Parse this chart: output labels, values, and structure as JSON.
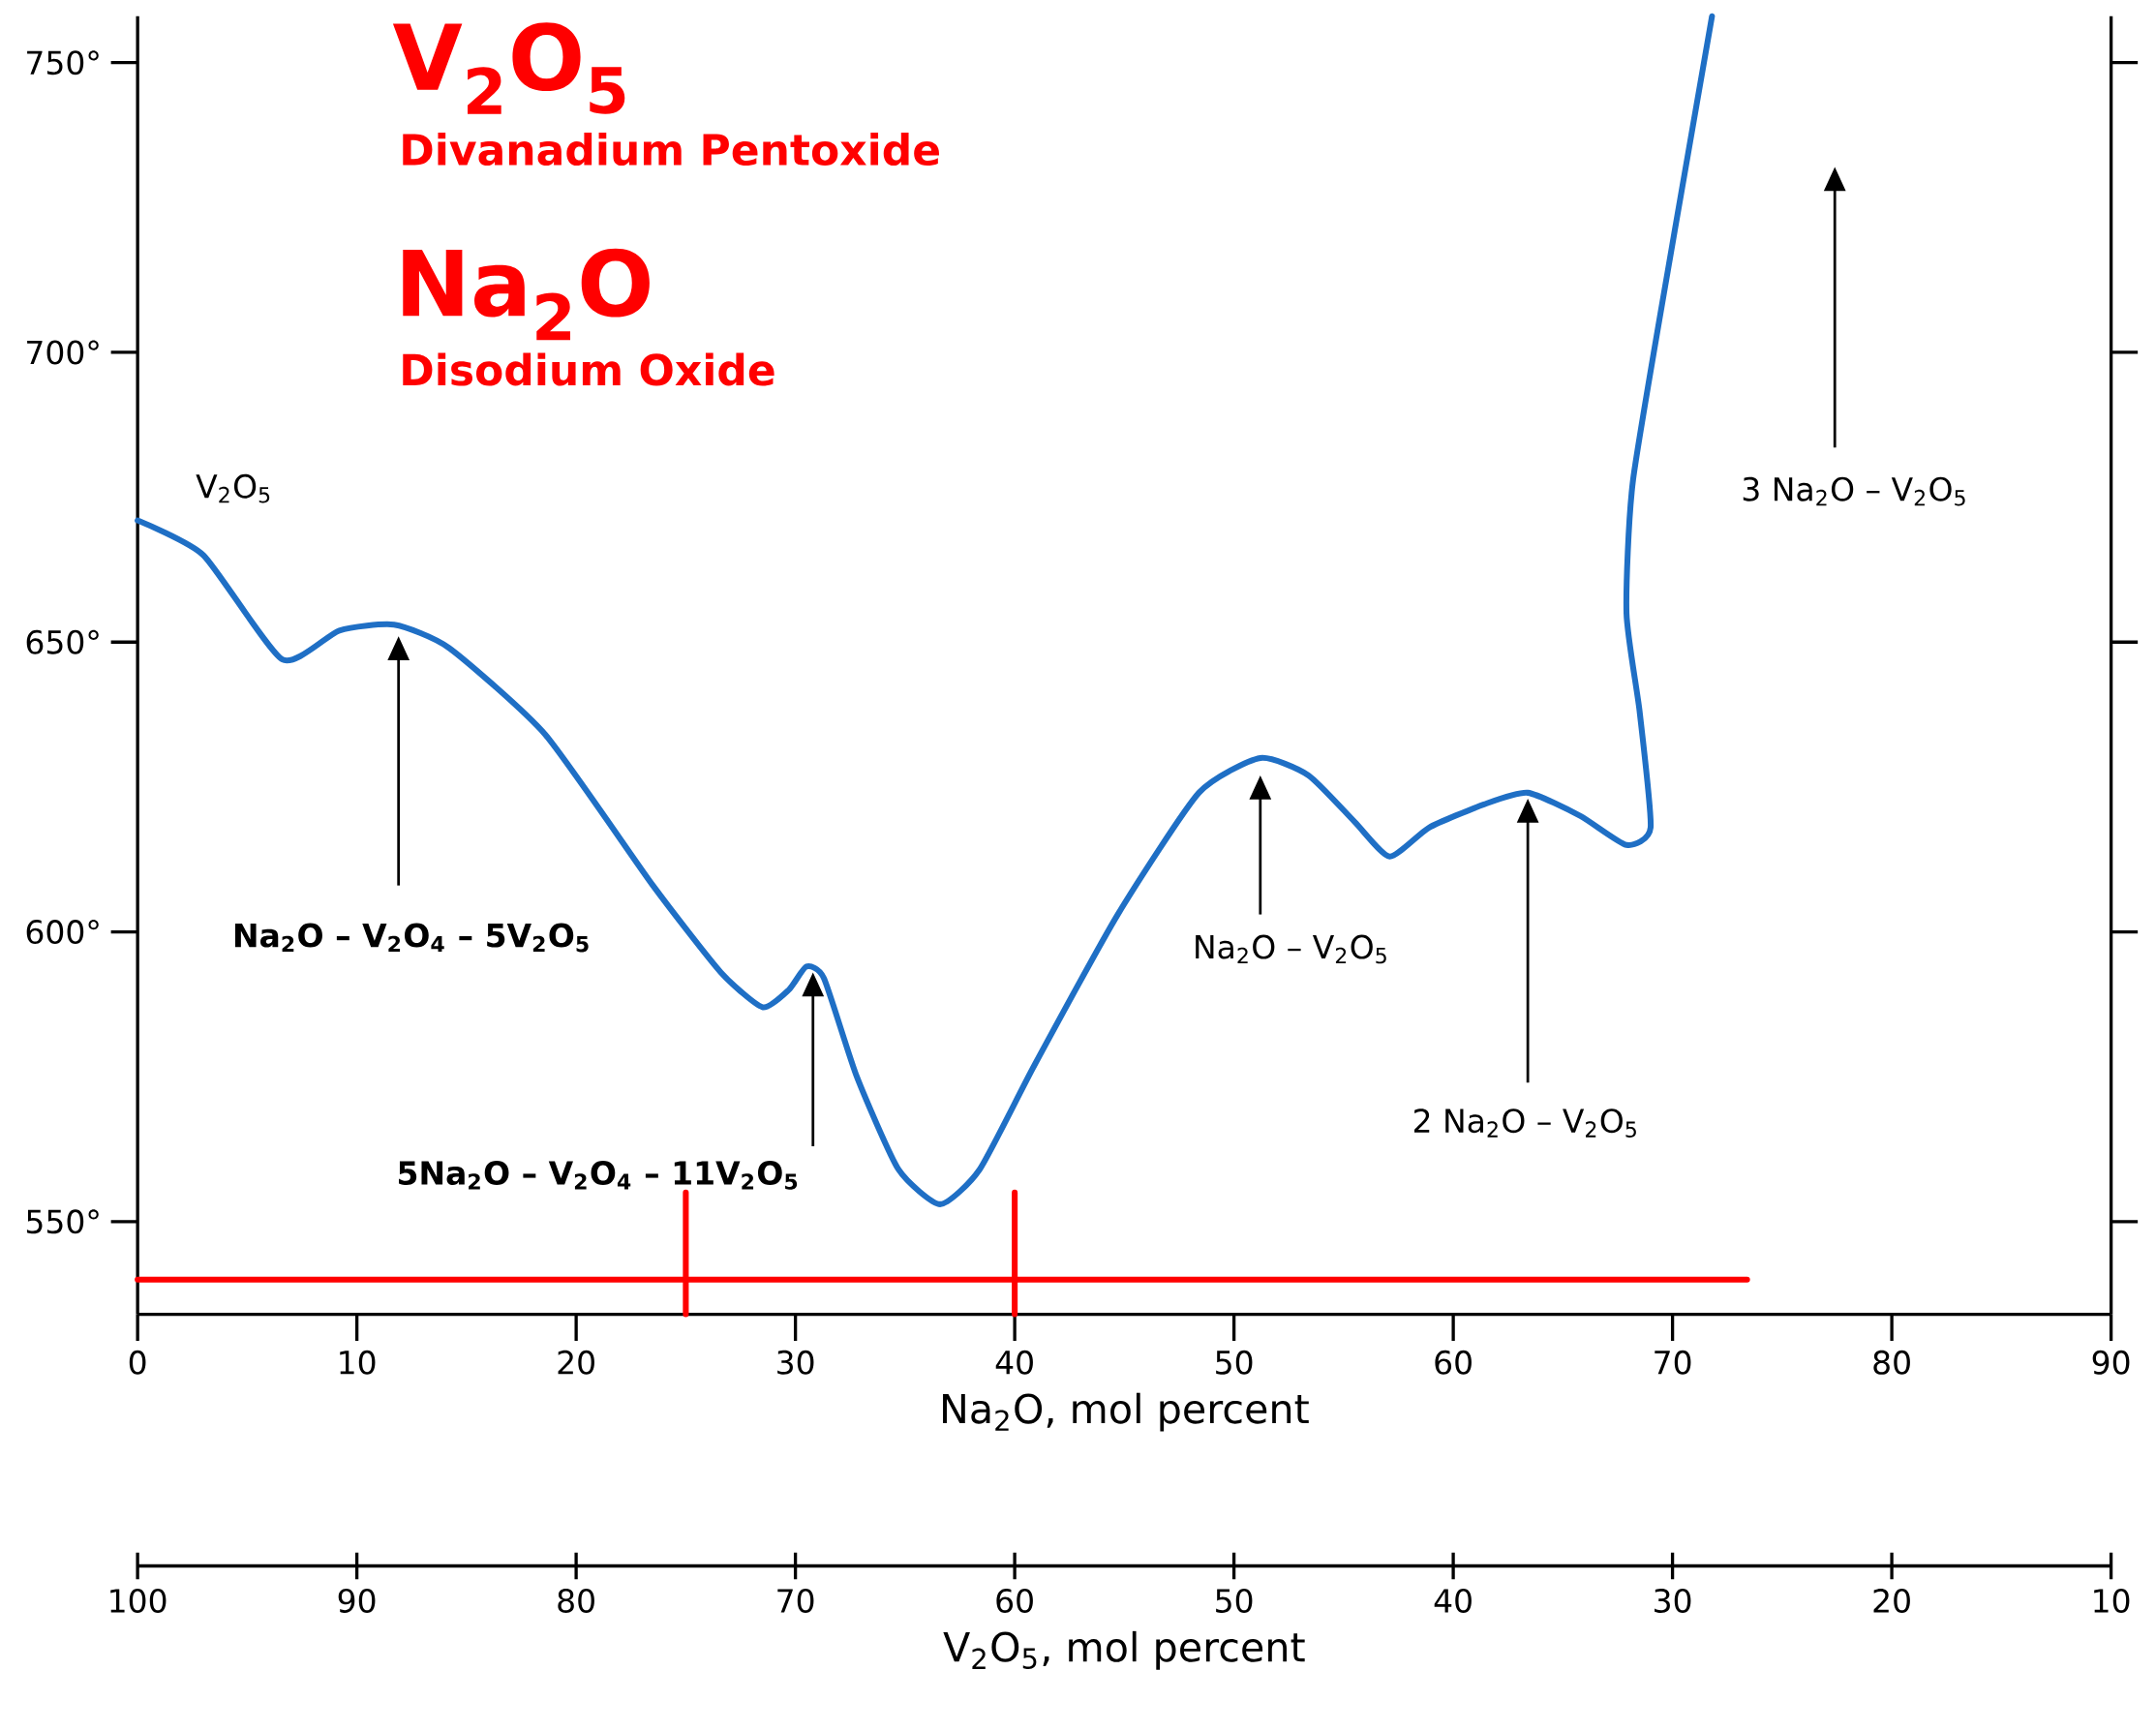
{
  "chart_data": {
    "type": "line",
    "xlabel": "Na$_{2}$O, mol percent",
    "x2label": "V$_{2}$O$_{5}$, mol percent",
    "xlim": [
      0,
      90
    ],
    "xticks": [
      0,
      10,
      20,
      30,
      40,
      50,
      60,
      70,
      80,
      90
    ],
    "ylim": [
      534,
      758
    ],
    "yticks": [
      {
        "value": 550,
        "label": "550°"
      },
      {
        "value": 600,
        "label": "600°"
      },
      {
        "value": 650,
        "label": "650°"
      },
      {
        "value": 700,
        "label": "700°"
      },
      {
        "value": 750,
        "label": "750°"
      }
    ],
    "x2lim": [
      100,
      10
    ],
    "x2ticks": [
      100,
      90,
      80,
      70,
      60,
      50,
      40,
      30,
      20,
      10
    ],
    "series": [
      {
        "color": "#1f6fc5",
        "x": [
          0,
          3.0,
          6.6,
          9.2,
          11.7,
          14.2,
          18.6,
          23.5,
          26.6,
          28.5,
          29.7,
          30.5,
          31.3,
          32.8,
          34.7,
          36.6,
          38.4,
          40.9,
          44.7,
          48.4,
          51.2,
          53.4,
          55.5,
          57.1,
          58.9,
          61.4,
          63.4,
          65.8,
          67.9,
          69.0,
          68.5,
          67.9,
          68.2,
          70.1,
          71.8
        ],
        "values": [
          671,
          665,
          647,
          652,
          653,
          649,
          634,
          608,
          593,
          587,
          590,
          594,
          592,
          575,
          559,
          553,
          559,
          577,
          603,
          624,
          630,
          627,
          619,
          613,
          618,
          622,
          624,
          620,
          615,
          618,
          638,
          655,
          678,
          721,
          758
        ]
      },
      {
        "color": "#ff0000",
        "x": [
          0,
          73.4
        ],
        "values": [
          540,
          540
        ]
      },
      {
        "color": "#ff0000",
        "x": [
          25,
          25
        ],
        "values": [
          534,
          555
        ]
      },
      {
        "color": "#ff0000",
        "x": [
          40,
          40
        ],
        "values": [
          534,
          555
        ]
      }
    ],
    "annotations": [
      "V$_{2}$O$_{5}$",
      "Divanadium Pentoxide",
      "Na$_{2}$O",
      "Disodium Oxide",
      {
        "text": "V$_{2}$O$_{5}$",
        "x": 0,
        "y": 671
      },
      "Na$_{2}$O – V$_{2}$O$_{4}$ – 5V$_{2}$O$_{5}$",
      "5Na$_{2}$O – V$_{2}$O$_{4}$ – 11V$_{2}$O$_{5}$",
      "Na$_{2}$O – V$_{2}$O$_{5}$",
      "2 Na$_{2}$O – V$_{2}$O$_{5}$",
      "3 Na$_{2}$O – V$_{2}$O$_{5}$"
    ]
  }
}
